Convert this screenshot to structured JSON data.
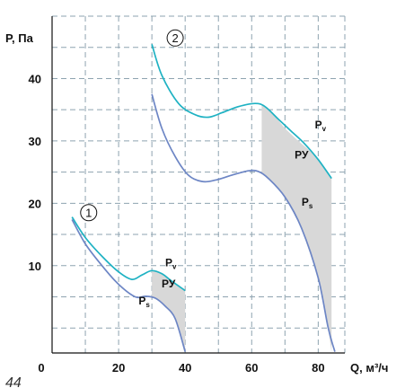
{
  "chart_data": {
    "type": "line",
    "xlabel": "Q, м³/ч",
    "ylabel": "P, Па",
    "xlim": [
      0,
      88
    ],
    "ylim": [
      -4,
      50
    ],
    "x_ticks": [
      0,
      20,
      40,
      60,
      80
    ],
    "y_ticks": [
      10,
      20,
      30,
      40
    ],
    "grid": true,
    "colors": {
      "pv": "#1fb2c3",
      "ps": "#6d86c5",
      "region": "#d8d8d8",
      "grid": "#8ea3b0"
    },
    "groups": [
      {
        "marker": "1",
        "series": [
          {
            "label": "P",
            "sub": "v",
            "x": [
              6,
              10,
              15,
              20,
              24,
              27,
              30,
              33,
              36,
              40
            ],
            "y": [
              17.8,
              14.5,
              11.5,
              9.0,
              7.8,
              8.5,
              9.2,
              8.7,
              7.5,
              6.0
            ]
          },
          {
            "label": "P",
            "sub": "s",
            "x": [
              6,
              10,
              15,
              20,
              25,
              28,
              31,
              34,
              37,
              40
            ],
            "y": [
              17.4,
              13.5,
              10.0,
              7.0,
              5.0,
              5.1,
              4.8,
              3.5,
              1.5,
              -3.8
            ]
          }
        ],
        "region_label": "РУ",
        "region": {
          "x": [
            30,
            33,
            36,
            40,
            40,
            37,
            34,
            31,
            30
          ],
          "y": [
            9.2,
            8.7,
            7.5,
            6.0,
            -3.8,
            1.5,
            3.5,
            4.8,
            5.0
          ]
        }
      },
      {
        "marker": "2",
        "series": [
          {
            "label": "P",
            "sub": "v",
            "x": [
              30,
              33,
              38,
              43,
              47,
              51,
              56,
              61,
              64,
              68,
              72,
              76,
              80,
              84
            ],
            "y": [
              45.5,
              40.5,
              36.0,
              34.2,
              33.8,
              34.5,
              35.5,
              36.0,
              35.5,
              33.5,
              31.5,
              29.5,
              27.0,
              24.0
            ]
          },
          {
            "label": "P",
            "sub": "s",
            "x": [
              30,
              33,
              37,
              41,
              45,
              49,
              54,
              59,
              62,
              65,
              70,
              75,
              80,
              83,
              85
            ],
            "y": [
              37.5,
              32.0,
              27.5,
              24.5,
              23.5,
              23.7,
              24.5,
              25.2,
              25.1,
              24.0,
              21.0,
              16.0,
              8.0,
              0.0,
              -3.8
            ]
          }
        ],
        "region_label": "РУ",
        "region": {
          "x": [
            63,
            66,
            70,
            74,
            78,
            82,
            84,
            84,
            83,
            80,
            75,
            70,
            66,
            63
          ],
          "y": [
            35.8,
            34.6,
            32.0,
            30.0,
            28.2,
            25.5,
            24.0,
            -3.8,
            0.0,
            8.0,
            16.0,
            21.0,
            23.4,
            25.0
          ]
        }
      }
    ]
  },
  "corner_mark": "44"
}
